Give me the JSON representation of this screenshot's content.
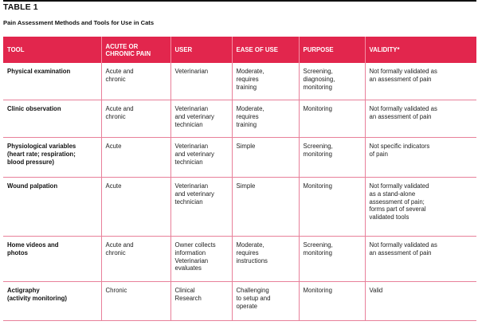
{
  "table": {
    "label": "TABLE 1",
    "title": "Pain Assessment Methods and Tools for Use in Cats",
    "header_color": "#e2264d",
    "border_color": "#e8809a",
    "columns": [
      "TOOL",
      "ACUTE OR\nCHRONIC PAIN",
      "USER",
      "EASE OF USE",
      "PURPOSE",
      "VALIDITY*"
    ],
    "rows": [
      {
        "tool": "Physical examination",
        "pain": "Acute and\nchronic",
        "user": "Veterinarian",
        "ease": "Moderate,\nrequires\ntraining",
        "purpose": "Screening,\ndiagnosing,\nmonitoring",
        "validity": "Not formally validated as\nan assessment of pain"
      },
      {
        "tool": "Clinic observation",
        "pain": "Acute and\nchronic",
        "user": "Veterinarian\nand veterinary\ntechnician",
        "ease": "Moderate,\nrequires\ntraining",
        "purpose": "Monitoring",
        "validity": "Not formally validated as\nan assessment of pain"
      },
      {
        "tool": "Physiological variables\n(heart rate; respiration;\nblood pressure)",
        "pain": "Acute",
        "user": "Veterinarian\nand veterinary\ntechnician",
        "ease": "Simple",
        "purpose": "Screening,\nmonitoring",
        "validity": "Not specific indicators\nof pain"
      },
      {
        "tool": "Wound palpation",
        "pain": "Acute",
        "user": "Veterinarian\nand veterinary\ntechnician",
        "ease": "Simple",
        "purpose": "Monitoring",
        "validity": "Not formally validated\nas a stand-alone\nassessment of pain;\nforms part of several\nvalidated tools"
      },
      {
        "tool": "Home videos and\nphotos",
        "pain": "Acute and\nchronic",
        "user": "Owner collects\ninformation\nVeterinarian\nevaluates",
        "ease": "Moderate,\nrequires\ninstructions",
        "purpose": "Screening,\nmonitoring",
        "validity": "Not formally validated as\nan assessment of pain"
      },
      {
        "tool": "Actigraphy\n(activity monitoring)",
        "pain": "Chronic",
        "user": "Clinical\nResearch",
        "ease": "Challenging\nto setup and\noperate",
        "purpose": "Monitoring",
        "validity": "Valid"
      }
    ]
  }
}
